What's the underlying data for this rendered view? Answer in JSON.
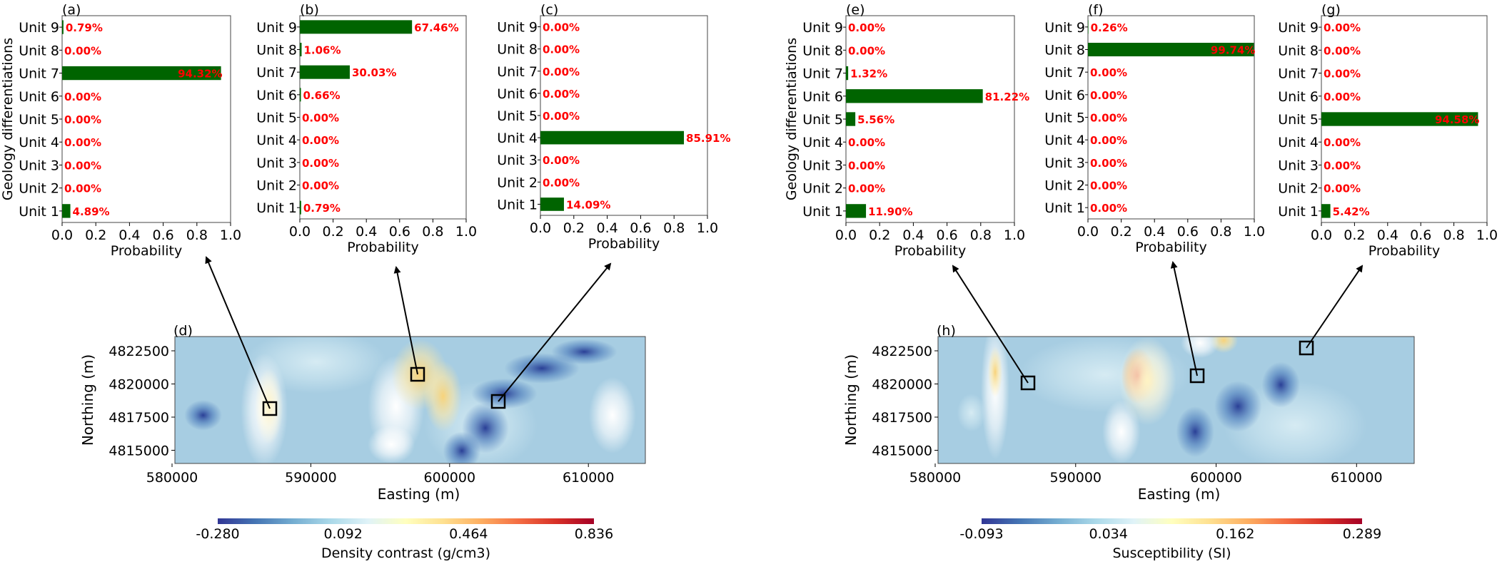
{
  "chart_data": [
    {
      "type": "bar",
      "orientation": "horizontal",
      "panel": "(a)",
      "categories": [
        "Unit 1",
        "Unit 2",
        "Unit 3",
        "Unit 4",
        "Unit 5",
        "Unit 6",
        "Unit 7",
        "Unit 8",
        "Unit 9"
      ],
      "values": [
        0.0489,
        0.0,
        0.0,
        0.0,
        0.0,
        0.0,
        0.9432,
        0.0,
        0.0079
      ],
      "labels": [
        "4.89%",
        "0.00%",
        "0.00%",
        "0.00%",
        "0.00%",
        "0.00%",
        "94.32%",
        "0.00%",
        "0.79%"
      ],
      "xlabel": "Probability",
      "ylabel": "Geology differentiations",
      "xlim": [
        0,
        1.0
      ],
      "xticks": [
        "0.0",
        "0.2",
        "0.4",
        "0.6",
        "0.8",
        "1.0"
      ],
      "bar_color": "#006400"
    },
    {
      "type": "bar",
      "orientation": "horizontal",
      "panel": "(b)",
      "categories": [
        "Unit 1",
        "Unit 2",
        "Unit 3",
        "Unit 4",
        "Unit 5",
        "Unit 6",
        "Unit 7",
        "Unit 8",
        "Unit 9"
      ],
      "values": [
        0.0079,
        0.0,
        0.0,
        0.0,
        0.0,
        0.0066,
        0.3003,
        0.0106,
        0.6746
      ],
      "labels": [
        "0.79%",
        "0.00%",
        "0.00%",
        "0.00%",
        "0.00%",
        "0.66%",
        "30.03%",
        "1.06%",
        "67.46%"
      ],
      "xlabel": "Probability",
      "ylabel": "",
      "xlim": [
        0,
        1.0
      ],
      "xticks": [
        "0.0",
        "0.2",
        "0.4",
        "0.6",
        "0.8",
        "1.0"
      ],
      "bar_color": "#006400"
    },
    {
      "type": "bar",
      "orientation": "horizontal",
      "panel": "(c)",
      "categories": [
        "Unit 1",
        "Unit 2",
        "Unit 3",
        "Unit 4",
        "Unit 5",
        "Unit 6",
        "Unit 7",
        "Unit 8",
        "Unit 9"
      ],
      "values": [
        0.1409,
        0.0,
        0.0,
        0.8591,
        0.0,
        0.0,
        0.0,
        0.0,
        0.0
      ],
      "labels": [
        "14.09%",
        "0.00%",
        "0.00%",
        "85.91%",
        "0.00%",
        "0.00%",
        "0.00%",
        "0.00%",
        "0.00%"
      ],
      "xlabel": "Probability",
      "ylabel": "",
      "xlim": [
        0,
        1.0
      ],
      "xticks": [
        "0.0",
        "0.2",
        "0.4",
        "0.6",
        "0.8",
        "1.0"
      ],
      "bar_color": "#006400"
    },
    {
      "type": "heatmap",
      "panel": "(d)",
      "xlabel": "Easting (m)",
      "ylabel": "Northing (m)",
      "xticks": [
        "580000",
        "590000",
        "600000",
        "610000"
      ],
      "yticks": [
        "4822500",
        "4820000",
        "4817500",
        "4815000"
      ],
      "colorbar_label": "Density contrast (g/cm3)",
      "colorbar_ticks": [
        "-0.280",
        "0.092",
        "0.464",
        "0.836"
      ],
      "colormap": [
        "#313695",
        "#4575b4",
        "#74add1",
        "#abd9e9",
        "#e0f3f8",
        "#ffffbf",
        "#fee090",
        "#fdae61",
        "#f46d43",
        "#d73027",
        "#a50026"
      ]
    },
    {
      "type": "bar",
      "orientation": "horizontal",
      "panel": "(e)",
      "categories": [
        "Unit 1",
        "Unit 2",
        "Unit 3",
        "Unit 4",
        "Unit 5",
        "Unit 6",
        "Unit 7",
        "Unit 8",
        "Unit 9"
      ],
      "values": [
        0.119,
        0.0,
        0.0,
        0.0,
        0.0556,
        0.8122,
        0.0132,
        0.0,
        0.0
      ],
      "labels": [
        "11.90%",
        "0.00%",
        "0.00%",
        "0.00%",
        "5.56%",
        "81.22%",
        "1.32%",
        "0.00%",
        "0.00%"
      ],
      "xlabel": "Probability",
      "ylabel": "Geology differentiations",
      "xlim": [
        0,
        1.0
      ],
      "xticks": [
        "0.0",
        "0.2",
        "0.4",
        "0.6",
        "0.8",
        "1.0"
      ],
      "bar_color": "#006400"
    },
    {
      "type": "bar",
      "orientation": "horizontal",
      "panel": "(f)",
      "categories": [
        "Unit 1",
        "Unit 2",
        "Unit 3",
        "Unit 4",
        "Unit 5",
        "Unit 6",
        "Unit 7",
        "Unit 8",
        "Unit 9"
      ],
      "values": [
        0.0,
        0.0,
        0.0,
        0.0,
        0.0,
        0.0,
        0.0,
        0.9974,
        0.0026
      ],
      "labels": [
        "0.00%",
        "0.00%",
        "0.00%",
        "0.00%",
        "0.00%",
        "0.00%",
        "0.00%",
        "99.74%",
        "0.26%"
      ],
      "xlabel": "Probability",
      "ylabel": "",
      "xlim": [
        0,
        1.0
      ],
      "xticks": [
        "0.0",
        "0.2",
        "0.4",
        "0.6",
        "0.8",
        "1.0"
      ],
      "bar_color": "#006400"
    },
    {
      "type": "bar",
      "orientation": "horizontal",
      "panel": "(g)",
      "categories": [
        "Unit 1",
        "Unit 2",
        "Unit 3",
        "Unit 4",
        "Unit 5",
        "Unit 6",
        "Unit 7",
        "Unit 8",
        "Unit 9"
      ],
      "values": [
        0.0542,
        0.0,
        0.0,
        0.0,
        0.9458,
        0.0,
        0.0,
        0.0,
        0.0
      ],
      "labels": [
        "5.42%",
        "0.00%",
        "0.00%",
        "0.00%",
        "94.58%",
        "0.00%",
        "0.00%",
        "0.00%",
        "0.00%"
      ],
      "xlabel": "Probability",
      "ylabel": "",
      "xlim": [
        0,
        1.0
      ],
      "xticks": [
        "0.0",
        "0.2",
        "0.4",
        "0.6",
        "0.8",
        "1.0"
      ],
      "bar_color": "#006400"
    },
    {
      "type": "heatmap",
      "panel": "(h)",
      "xlabel": "Easting (m)",
      "ylabel": "Northing (m)",
      "xticks": [
        "580000",
        "590000",
        "600000",
        "610000"
      ],
      "yticks": [
        "4822500",
        "4820000",
        "4817500",
        "4815000"
      ],
      "colorbar_label": "Susceptibility (SI)",
      "colorbar_ticks": [
        "-0.093",
        "0.034",
        "0.162",
        "0.289"
      ],
      "colormap": [
        "#313695",
        "#4575b4",
        "#74add1",
        "#abd9e9",
        "#e0f3f8",
        "#ffffbf",
        "#fee090",
        "#fdae61",
        "#f46d43",
        "#d73027",
        "#a50026"
      ]
    }
  ]
}
